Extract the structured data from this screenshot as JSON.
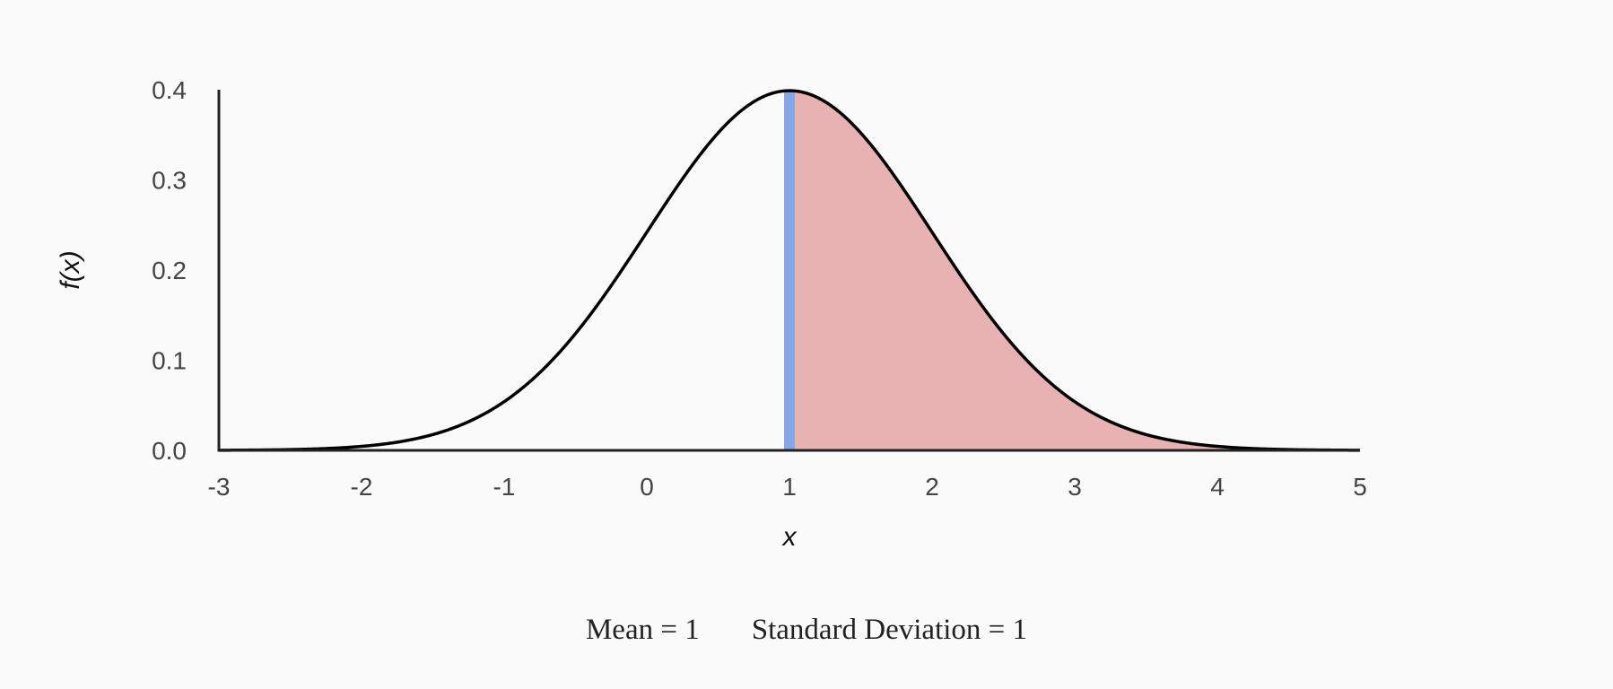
{
  "chart_data": {
    "type": "area",
    "distribution": "normal",
    "mean": 1,
    "sd": 1,
    "xlabel": "x",
    "ylabel": "f(x)",
    "xlim": [
      -3,
      5
    ],
    "ylim": [
      0,
      0.4
    ],
    "x_ticks": [
      "-3",
      "-2",
      "-1",
      "0",
      "1",
      "2",
      "3",
      "4",
      "5"
    ],
    "y_ticks": [
      "0.0",
      "0.1",
      "0.2",
      "0.3",
      "0.4"
    ],
    "marker_x": 1,
    "shaded_region": [
      1,
      5
    ],
    "colors": {
      "curve": "#000000",
      "marker": "#86a6e8",
      "shade": "#e8b1b2",
      "axis": "#222222"
    },
    "grid": false
  },
  "caption": {
    "mean_text": "Mean = 1",
    "sd_text": "Standard Deviation = 1"
  }
}
